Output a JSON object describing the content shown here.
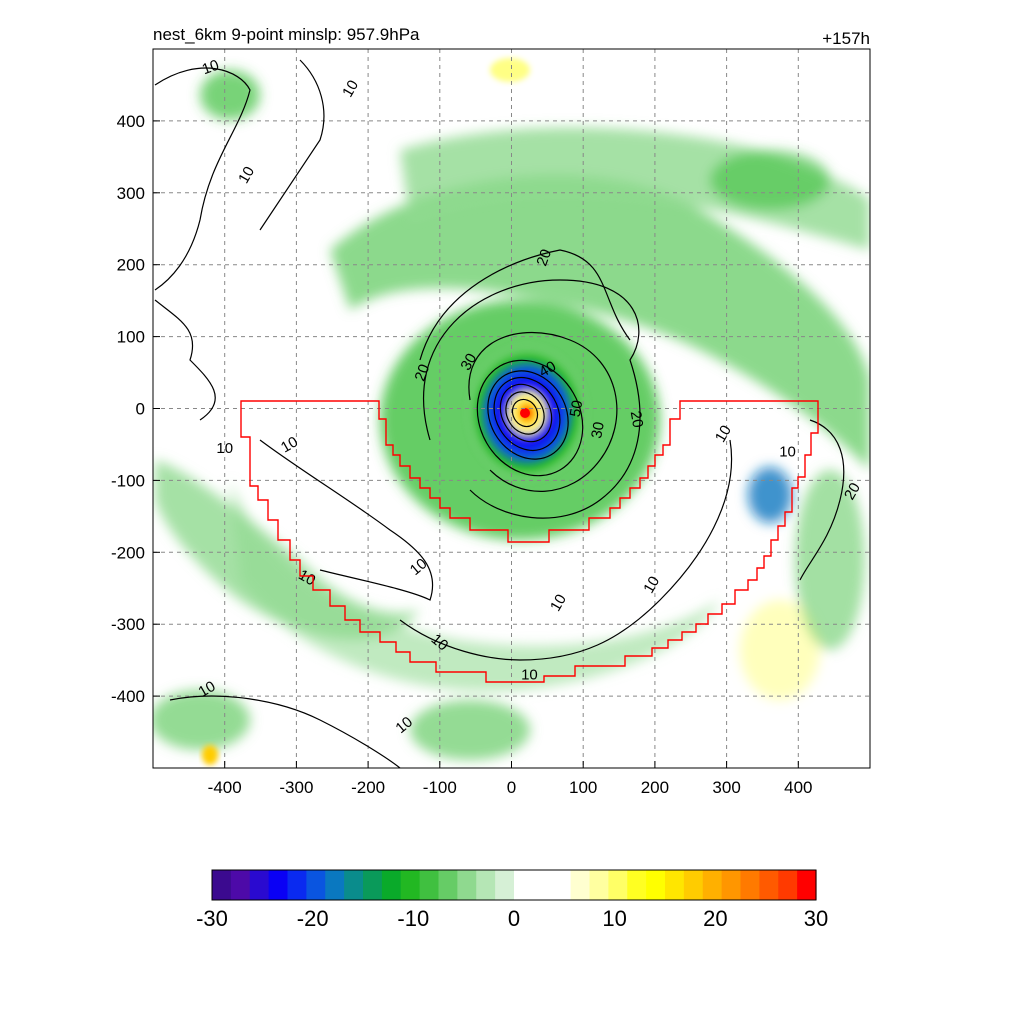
{
  "header": {
    "left_title": "nest_6km  9-point minslp: 957.9hPa",
    "right_title": "+157h"
  },
  "chart_data": {
    "type": "heatmap",
    "title": "nest_6km  9-point minslp: 957.9hPa",
    "forecast_hour_label": "+157h",
    "xlim": [
      -500,
      500
    ],
    "ylim": [
      -500,
      500
    ],
    "x_ticks": [
      -400,
      -300,
      -200,
      -100,
      0,
      100,
      200,
      300,
      400
    ],
    "y_ticks": [
      400,
      300,
      200,
      100,
      0,
      -100,
      -200,
      -300,
      -400
    ],
    "grid": true,
    "storm_center": [
      18,
      -5
    ],
    "colorbar": {
      "min": -30,
      "max": 30,
      "ticks": [
        -30,
        -20,
        -10,
        0,
        10,
        20,
        30
      ],
      "colors": [
        "#3b0a8f",
        "#4d0aa8",
        "#2a0ad0",
        "#0a00f5",
        "#0a2af0",
        "#0a55e0",
        "#0a78c0",
        "#0a8c8c",
        "#0a9a5a",
        "#0aaa2a",
        "#22b822",
        "#40c040",
        "#66cc66",
        "#8fd98f",
        "#b5e6b5",
        "#d6f0d6",
        "#ffffff",
        "#ffffff",
        "#ffffff",
        "#ffffd0",
        "#ffffa0",
        "#ffff66",
        "#ffff22",
        "#ffff00",
        "#ffe600",
        "#ffcc00",
        "#ffb000",
        "#ff9600",
        "#ff7a00",
        "#ff5a00",
        "#ff3a00",
        "#ff0000"
      ]
    },
    "contour_levels": [
      10,
      20,
      30,
      40,
      50
    ],
    "contour_labels": [
      {
        "text": "10",
        "x": -420,
        "y": 475,
        "rot": -20
      },
      {
        "text": "10",
        "x": -225,
        "y": 445,
        "rot": -60
      },
      {
        "text": "10",
        "x": -370,
        "y": 325,
        "rot": -60
      },
      {
        "text": "10",
        "x": -400,
        "y": -55,
        "rot": 0
      },
      {
        "text": "10",
        "x": -310,
        "y": -50,
        "rot": -30
      },
      {
        "text": "10",
        "x": -285,
        "y": -235,
        "rot": 30
      },
      {
        "text": "10",
        "x": -130,
        "y": -220,
        "rot": -40
      },
      {
        "text": "10",
        "x": -100,
        "y": -325,
        "rot": 40
      },
      {
        "text": "10",
        "x": 65,
        "y": -270,
        "rot": -60
      },
      {
        "text": "10",
        "x": 195,
        "y": -245,
        "rot": -60
      },
      {
        "text": "10",
        "x": 25,
        "y": -370,
        "rot": 0
      },
      {
        "text": "10",
        "x": 295,
        "y": -35,
        "rot": -60
      },
      {
        "text": "10",
        "x": 385,
        "y": -60,
        "rot": 0
      },
      {
        "text": "10",
        "x": -425,
        "y": -390,
        "rot": -30
      },
      {
        "text": "10",
        "x": -150,
        "y": -440,
        "rot": -40
      },
      {
        "text": "20",
        "x": -125,
        "y": 50,
        "rot": -70
      },
      {
        "text": "20",
        "x": 45,
        "y": 210,
        "rot": -70
      },
      {
        "text": "20",
        "x": 175,
        "y": -15,
        "rot": 80
      },
      {
        "text": "20",
        "x": 475,
        "y": -115,
        "rot": -60
      },
      {
        "text": "30",
        "x": -60,
        "y": 65,
        "rot": -60
      },
      {
        "text": "30",
        "x": 120,
        "y": -30,
        "rot": -80
      },
      {
        "text": "40",
        "x": 50,
        "y": 55,
        "rot": -30
      },
      {
        "text": "50",
        "x": 90,
        "y": 0,
        "rot": -80
      }
    ]
  }
}
